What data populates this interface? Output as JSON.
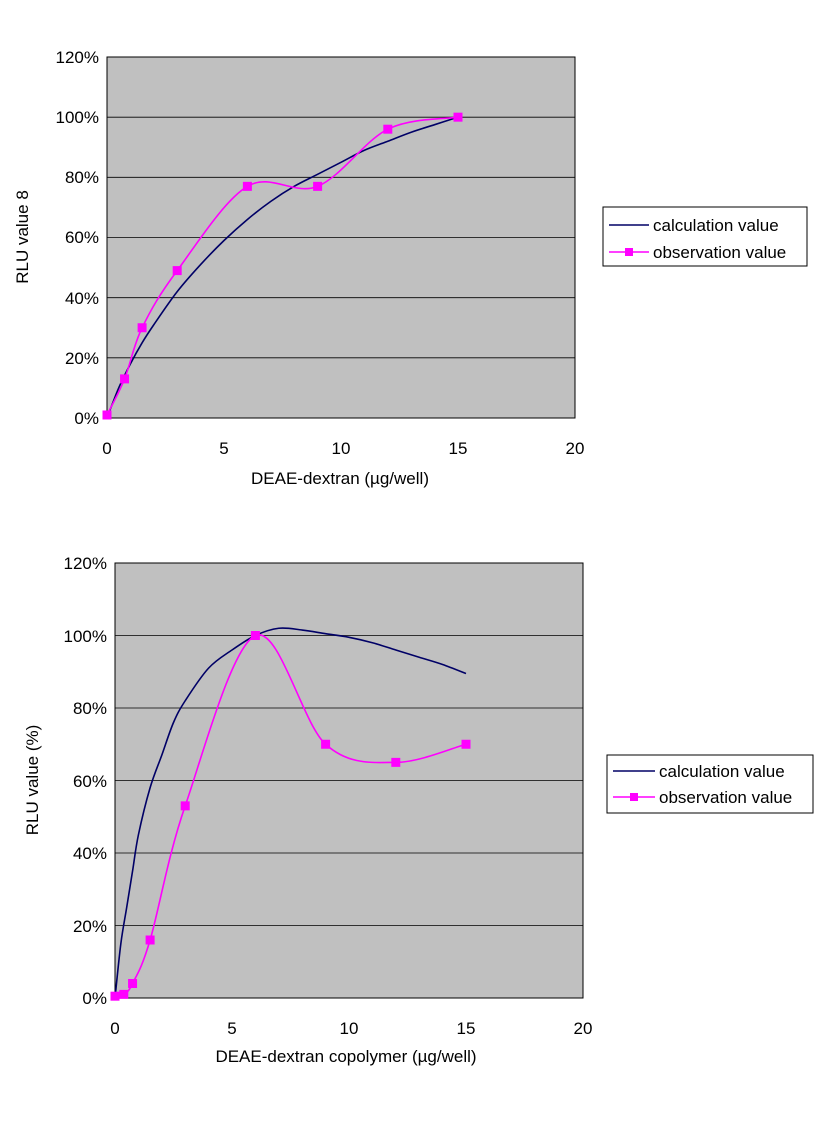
{
  "chart_data": [
    {
      "type": "line",
      "xlabel": "DEAE-dextran (µg/well)",
      "ylabel": "RLU value  8",
      "xlim": [
        0,
        20
      ],
      "ylim": [
        0,
        120
      ],
      "xticks": [
        "0",
        "5",
        "10",
        "15",
        "20"
      ],
      "yticks": [
        "0%",
        "20%",
        "40%",
        "60%",
        "80%",
        "100%",
        "120%"
      ],
      "grid": true,
      "legend_position": "right",
      "plot_background": "#c0c0c0",
      "series": [
        {
          "name": "calculation value",
          "color": "#000066",
          "marker": "none",
          "x": [
            0,
            0.5,
            1,
            1.5,
            2,
            3,
            4,
            5,
            6,
            7,
            8,
            9,
            10,
            11,
            12,
            13,
            14,
            15
          ],
          "y": [
            0,
            10,
            18,
            25,
            31,
            42,
            51,
            59,
            66,
            72,
            77,
            81,
            85,
            89,
            92,
            95,
            97.5,
            100
          ]
        },
        {
          "name": "observation value",
          "color": "#ff00ff",
          "marker": "square",
          "x": [
            0,
            0.75,
            1.5,
            3,
            6,
            9,
            12,
            15
          ],
          "y": [
            1,
            13,
            30,
            49,
            77,
            77,
            96,
            100
          ]
        }
      ]
    },
    {
      "type": "line",
      "xlabel": "DEAE-dextran copolymer (µg/well)",
      "ylabel": "RLU  value (%)",
      "xlim": [
        0,
        20
      ],
      "ylim": [
        0,
        120
      ],
      "xticks": [
        "0",
        "5",
        "10",
        "15",
        "20"
      ],
      "yticks": [
        "0%",
        "20%",
        "40%",
        "60%",
        "80%",
        "100%",
        "120%"
      ],
      "grid": true,
      "legend_position": "right",
      "plot_background": "#c0c0c0",
      "series": [
        {
          "name": "calculation value",
          "color": "#000066",
          "marker": "none",
          "x": [
            0,
            0.25,
            0.5,
            0.75,
            1,
            1.5,
            2,
            2.5,
            3,
            4,
            5,
            6,
            7,
            8,
            9,
            10,
            11,
            12,
            13,
            14,
            15
          ],
          "y": [
            0,
            15,
            25,
            35,
            45,
            58,
            67,
            76,
            82,
            91,
            96,
            100,
            102,
            101.5,
            100.5,
            99.5,
            98,
            96,
            94,
            92,
            89.5
          ]
        },
        {
          "name": "observation value",
          "color": "#ff00ff",
          "marker": "square",
          "x": [
            0,
            0.375,
            0.75,
            1.5,
            3,
            6,
            9,
            12,
            15
          ],
          "y": [
            0.5,
            1,
            4,
            16,
            53,
            100,
            70,
            65,
            70
          ]
        }
      ]
    }
  ]
}
